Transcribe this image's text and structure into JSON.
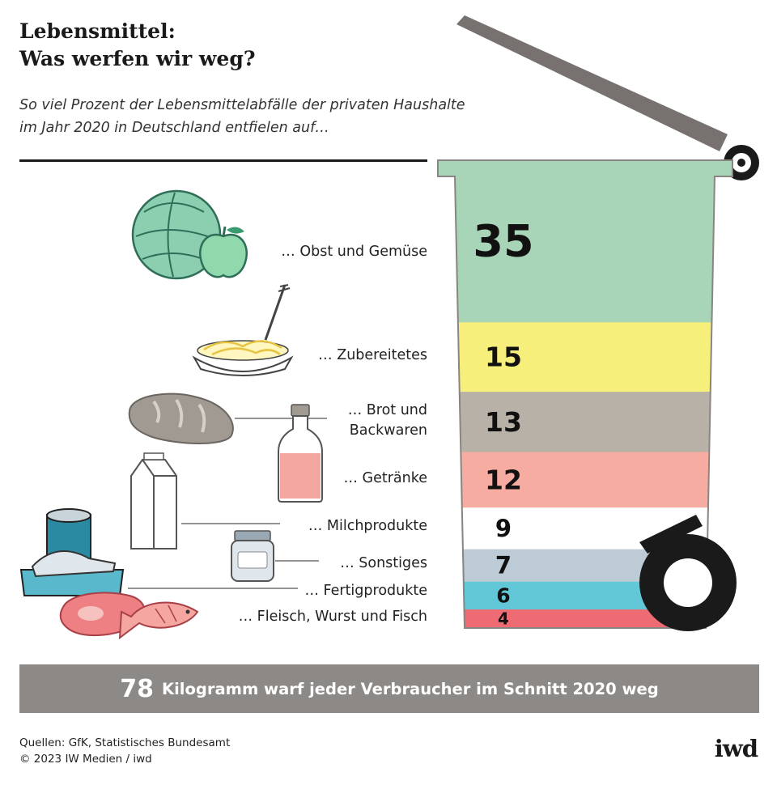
{
  "title": [
    "Lebensmittel:",
    "Was werfen wir weg?"
  ],
  "subtitle": [
    "So viel Prozent der Lebensmittelabfälle der privaten Haushalte",
    "im Jahr 2020 in Deutschland entfielen auf…"
  ],
  "chart_data": {
    "type": "bar",
    "categories": [
      "… Obst und Gemüse",
      "… Zubereitetes",
      "… Brot und Backwaren",
      "… Getränke",
      "… Milchprodukte",
      "… Sonstiges",
      "… Fertigprodukte",
      "… Fleisch, Wurst und Fisch"
    ],
    "values": [
      35,
      15,
      13,
      12,
      9,
      7,
      6,
      4
    ],
    "colors": [
      "#a8d5b8",
      "#f7ef7c",
      "#b7b1a7",
      "#f7aca1",
      "#ffffff",
      "#bccbd5",
      "#62c8d8",
      "#ee6b74"
    ]
  },
  "labels": {
    "obst": "… Obst und Gemüse",
    "zubereitetes": "… Zubereitetes",
    "brot": [
      "… Brot und",
      "Backwaren"
    ],
    "getraenke": "… Getränke",
    "milch": "… Milchprodukte",
    "sonstiges": "… Sonstiges",
    "fertig": "… Fertigprodukte",
    "fleisch": "… Fleisch, Wurst und Fisch"
  },
  "banner": {
    "number": "78",
    "text": "Kilogramm warf jeder Verbraucher im Schnitt 2020 weg"
  },
  "sources": [
    "Quellen: GfK, Statistisches Bundesamt",
    "© 2023 IW Medien / iwd"
  ],
  "logo": "iwd",
  "icons": [
    "cabbage-icon",
    "apple-icon",
    "pasta-icon",
    "bread-icon",
    "bottle-icon",
    "milk-carton-icon",
    "jar-icon",
    "can-icon",
    "fish-tray-icon",
    "meat-icon",
    "fish-icon"
  ]
}
